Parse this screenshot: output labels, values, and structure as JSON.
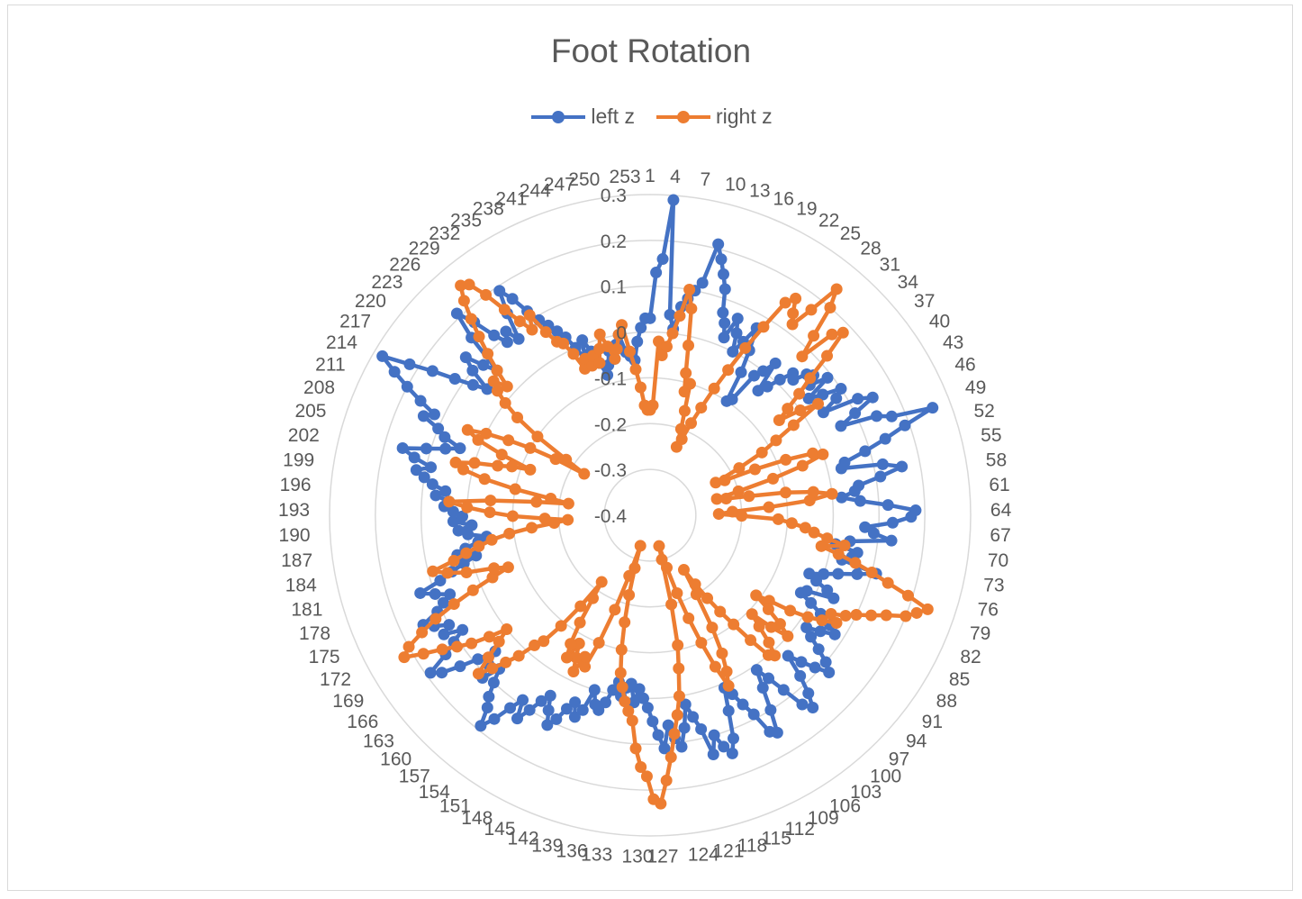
{
  "chart_data": {
    "type": "radar",
    "title": "Foot Rotation",
    "legend_position": "top",
    "categories_count": 255,
    "category_label_every": 3,
    "rlim": [
      -0.4,
      0.3
    ],
    "r_ticks": [
      0.3,
      0.2,
      0.1,
      0,
      -0.1,
      -0.2,
      -0.3,
      -0.4
    ],
    "r_tick_labels": [
      "0.3",
      "0.2",
      "0.1",
      "0",
      "-0.1",
      "-0.2",
      "-0.3",
      "-0.4"
    ],
    "grid": true,
    "series": [
      {
        "name": "left z",
        "color": "#4472C4",
        "values": [
          0.03,
          0.13,
          0.16,
          0.29,
          0.04,
          0.01,
          0.06,
          0.08,
          0.1,
          0.12,
          0.21,
          0.18,
          0.15,
          0.12,
          0.07,
          0.05,
          0.02,
          0.07,
          0.04,
          0.0,
          0.03,
          0.07,
          0.02,
          -0.03,
          -0.1,
          -0.09,
          -0.02,
          0.0,
          0.03,
          -0.04,
          -0.02,
          0.01,
          0.04,
          0.03,
          0.06,
          0.07,
          0.05,
          0.09,
          0.03,
          0.06,
          0.1,
          0.08,
          0.04,
          0.12,
          0.15,
          0.1,
          0.06,
          0.14,
          0.17,
          0.26,
          0.19,
          0.14,
          0.09,
          0.04,
          0.03,
          0.12,
          0.16,
          0.11,
          0.06,
          0.05,
          0.02,
          0.06,
          0.12,
          0.18,
          0.17,
          0.13,
          0.07,
          0.09,
          0.13,
          0.04,
          0.01,
          0.06,
          0.05,
          0.03,
          0.11,
          0.07,
          0.03,
          0.0,
          -0.03,
          -0.01,
          0.02,
          0.04,
          -0.02,
          -0.03,
          0.0,
          0.03,
          0.06,
          0.08,
          0.05,
          0.02,
          0.04,
          0.07,
          0.1,
          0.12,
          0.09,
          0.06,
          0.03,
          0.08,
          0.12,
          0.15,
          0.13,
          0.08,
          0.04,
          0.01,
          0.05,
          0.1,
          0.15,
          0.14,
          0.09,
          0.06,
          0.03,
          0.01,
          0.06,
          0.12,
          0.15,
          0.13,
          0.1,
          0.14,
          0.08,
          0.05,
          0.02,
          0.07,
          0.11,
          0.09,
          0.06,
          0.11,
          0.08,
          0.05,
          0.02,
          0.0,
          -0.02,
          0.01,
          -0.03,
          -0.02,
          0.0,
          -0.03,
          -0.01,
          0.02,
          0.04,
          0.03,
          0.0,
          0.05,
          0.07,
          0.04,
          0.06,
          0.09,
          0.11,
          0.08,
          0.05,
          0.07,
          0.1,
          0.13,
          0.09,
          0.12,
          0.16,
          0.19,
          0.15,
          0.13,
          0.1,
          0.07,
          0.11,
          0.08,
          0.05,
          0.09,
          0.13,
          0.17,
          0.19,
          0.14,
          0.11,
          0.08,
          0.12,
          0.1,
          0.13,
          0.15,
          0.11,
          0.09,
          0.07,
          0.1,
          0.13,
          0.08,
          0.05,
          0.02,
          -0.01,
          0.03,
          0.01,
          -0.02,
          -0.04,
          0.0,
          0.02,
          -0.01,
          0.03,
          0.01,
          0.03,
          0.05,
          0.04,
          0.07,
          0.05,
          0.08,
          0.1,
          0.12,
          0.09,
          0.13,
          0.16,
          0.11,
          0.07,
          0.04,
          0.08,
          0.1,
          0.14,
          0.12,
          0.16,
          0.2,
          0.24,
          0.28,
          0.22,
          0.17,
          0.12,
          0.08,
          0.05,
          0.1,
          0.13,
          0.09,
          0.06,
          0.15,
          0.21,
          0.17,
          0.12,
          0.09,
          0.11,
          0.08,
          0.14,
          0.19,
          0.16,
          0.12,
          0.09,
          0.07,
          0.05,
          0.03,
          0.0,
          -0.03,
          0.01,
          -0.02,
          -0.05,
          -0.08,
          -0.06,
          -0.03,
          -0.05,
          -0.02,
          0.0,
          -0.04,
          -0.05,
          -0.06,
          -0.02,
          0.01,
          0.03
        ]
      },
      {
        "name": "right z",
        "color": "#ED7D31",
        "values": [
          -0.17,
          -0.16,
          -0.02,
          -0.05,
          -0.03,
          0.0,
          0.04,
          0.1,
          0.06,
          -0.02,
          -0.08,
          -0.12,
          -0.1,
          -0.16,
          -0.2,
          -0.24,
          -0.22,
          -0.18,
          -0.14,
          -0.09,
          -0.04,
          0.02,
          0.08,
          0.15,
          0.17,
          0.14,
          0.12,
          0.17,
          0.24,
          0.2,
          0.13,
          0.08,
          0.16,
          0.18,
          0.12,
          0.06,
          0.02,
          -0.02,
          -0.05,
          0.0,
          0.04,
          -0.03,
          -0.08,
          -0.12,
          -0.18,
          -0.24,
          -0.22,
          -0.15,
          -0.08,
          -0.02,
          0.0,
          -0.05,
          -0.12,
          -0.2,
          -0.25,
          -0.23,
          -0.18,
          -0.1,
          -0.04,
          0.0,
          -0.05,
          -0.14,
          -0.22,
          -0.25,
          -0.2,
          -0.12,
          -0.09,
          -0.06,
          -0.04,
          -0.01,
          0.03,
          -0.02,
          0.02,
          0.06,
          0.1,
          0.14,
          0.19,
          0.24,
          0.22,
          0.2,
          0.16,
          0.13,
          0.1,
          0.08,
          0.05,
          0.07,
          0.04,
          0.01,
          -0.03,
          -0.08,
          -0.11,
          -0.07,
          -0.03,
          0.0,
          -0.04,
          -0.09,
          -0.06,
          -0.02,
          0.01,
          0.0,
          -0.05,
          -0.1,
          -0.14,
          -0.18,
          -0.22,
          -0.26,
          -0.2,
          -0.12,
          -0.06,
          -0.02,
          0.01,
          -0.04,
          -0.1,
          -0.16,
          -0.22,
          -0.28,
          -0.33,
          -0.3,
          -0.2,
          -0.11,
          -0.06,
          0.0,
          0.04,
          0.08,
          0.13,
          0.18,
          0.23,
          0.22,
          0.17,
          0.15,
          0.11,
          0.05,
          0.03,
          0.01,
          -0.02,
          -0.05,
          -0.1,
          -0.16,
          -0.22,
          -0.28,
          -0.33,
          -0.26,
          -0.18,
          -0.1,
          -0.04,
          -0.06,
          -0.02,
          -0.05,
          -0.08,
          -0.04,
          -0.07,
          -0.12,
          -0.18,
          -0.22,
          -0.15,
          -0.09,
          -0.04,
          -0.02,
          0.02,
          0.05,
          0.08,
          0.11,
          0.07,
          0.03,
          0.0,
          0.04,
          0.08,
          0.11,
          0.14,
          0.18,
          0.22,
          0.2,
          0.16,
          0.12,
          0.07,
          0.02,
          -0.03,
          -0.07,
          -0.04,
          0.02,
          0.06,
          0.09,
          0.04,
          0.01,
          -0.02,
          -0.05,
          -0.09,
          -0.14,
          -0.19,
          -0.22,
          -0.17,
          -0.1,
          -0.05,
          0.0,
          0.04,
          -0.05,
          -0.15,
          -0.22,
          -0.18,
          -0.1,
          -0.03,
          0.02,
          0.04,
          0.0,
          -0.05,
          -0.08,
          -0.12,
          -0.05,
          0.01,
          0.04,
          0.0,
          -0.05,
          -0.1,
          -0.16,
          -0.23,
          -0.18,
          -0.1,
          -0.04,
          0.0,
          0.03,
          0.05,
          0.02,
          0.06,
          0.1,
          0.14,
          0.18,
          0.22,
          0.25,
          0.24,
          0.2,
          0.15,
          0.11,
          0.08,
          0.11,
          0.06,
          0.03,
          0.02,
          -0.01,
          -0.05,
          -0.03,
          -0.05,
          -0.03,
          -0.05,
          -0.02,
          0.01,
          -0.02,
          -0.05,
          -0.03,
          0.0,
          0.02,
          -0.04,
          -0.08,
          -0.12,
          -0.16,
          -0.17
        ]
      }
    ]
  }
}
